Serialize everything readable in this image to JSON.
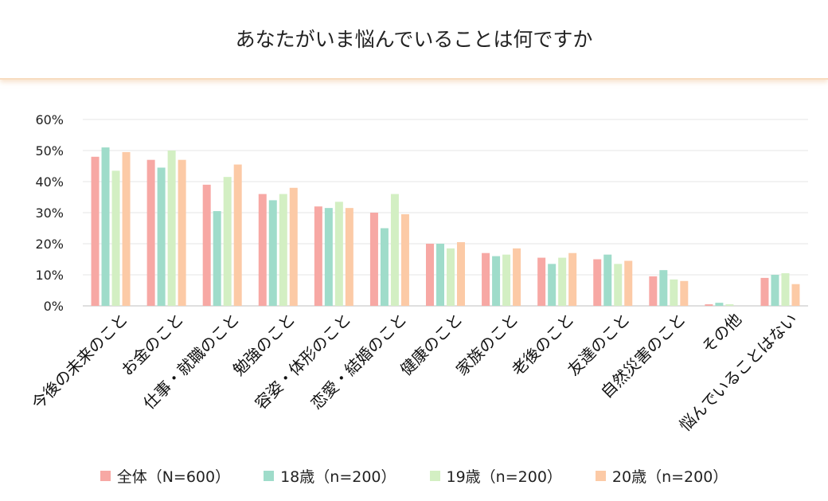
{
  "chart_data": {
    "type": "bar",
    "title": "あなたがいま悩んでいることは何ですか",
    "xlabel": "",
    "ylabel": "",
    "ylim": [
      0,
      60
    ],
    "yticks": [
      "0%",
      "10%",
      "20%",
      "30%",
      "40%",
      "50%",
      "60%"
    ],
    "grid": true,
    "legend_position": "bottom",
    "categories": [
      "今後の未来のこと",
      "お金のこと",
      "仕事・就職のこと",
      "勉強のこと",
      "容姿・体形のこと",
      "恋愛・結婚のこと",
      "健康のこと",
      "家族のこと",
      "老後のこと",
      "友達のこと",
      "自然災害のこと",
      "その他",
      "悩んでいることはない"
    ],
    "series": [
      {
        "name": "全体（N=600）",
        "color": "#f7a8a4",
        "values": [
          48,
          47,
          39,
          36,
          32,
          30,
          20,
          17,
          15.5,
          15,
          9.5,
          0.5,
          9
        ]
      },
      {
        "name": "18歳（n=200）",
        "color": "#9fdcca",
        "values": [
          51,
          44.5,
          30.5,
          34,
          31.5,
          25,
          20,
          16,
          13.5,
          16.5,
          11.5,
          1,
          10
        ]
      },
      {
        "name": "19歳（n=200）",
        "color": "#d3efc3",
        "values": [
          43.5,
          50,
          41.5,
          36,
          33.5,
          36,
          18.5,
          16.5,
          15.5,
          13.5,
          8.5,
          0.5,
          10.5
        ]
      },
      {
        "name": "20歳（n=200）",
        "color": "#fccaa6",
        "values": [
          49.5,
          47,
          45.5,
          38,
          31.5,
          29.5,
          20.5,
          18.5,
          17,
          14.5,
          8,
          0,
          7
        ]
      }
    ]
  }
}
